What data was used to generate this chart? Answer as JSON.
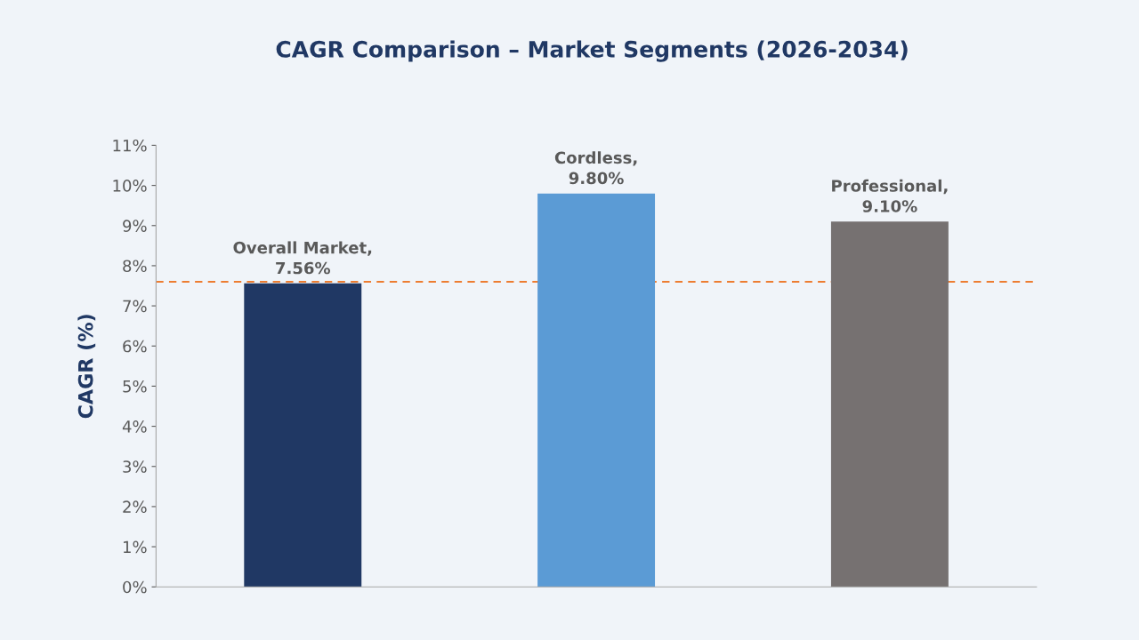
{
  "chart_data": {
    "type": "bar",
    "title": "CAGR Comparison – Market Segments (2026-2034)",
    "ylabel": "CAGR (%)",
    "categories": [
      null,
      null,
      null
    ],
    "values": [
      7.56,
      9.8,
      9.1
    ],
    "colors": [
      "#203864",
      "#5b9bd5",
      "#767171"
    ],
    "value_labels": [
      "Overall Market,\n7.56%",
      "Cordless,\n9.80%",
      "Professional,\n9.10%"
    ],
    "ylim": [
      0,
      11
    ],
    "yticks": [
      {
        "value": 0,
        "label": "0%"
      },
      {
        "value": 1,
        "label": "1%"
      },
      {
        "value": 2,
        "label": "2%"
      },
      {
        "value": 3,
        "label": "3%"
      },
      {
        "value": 4,
        "label": "4%"
      },
      {
        "value": 5,
        "label": "5%"
      },
      {
        "value": 6,
        "label": "6%"
      },
      {
        "value": 7,
        "label": "7%"
      },
      {
        "value": 8,
        "label": "8%"
      },
      {
        "value": 9,
        "label": "9%"
      },
      {
        "value": 10,
        "label": "10%"
      },
      {
        "value": 11,
        "label": "11%"
      }
    ],
    "ref_lines": [
      {
        "axis": "y",
        "value": 7.6,
        "label": null,
        "color": "#ed7d31",
        "line_style": "dashed"
      }
    ],
    "grid": false
  }
}
